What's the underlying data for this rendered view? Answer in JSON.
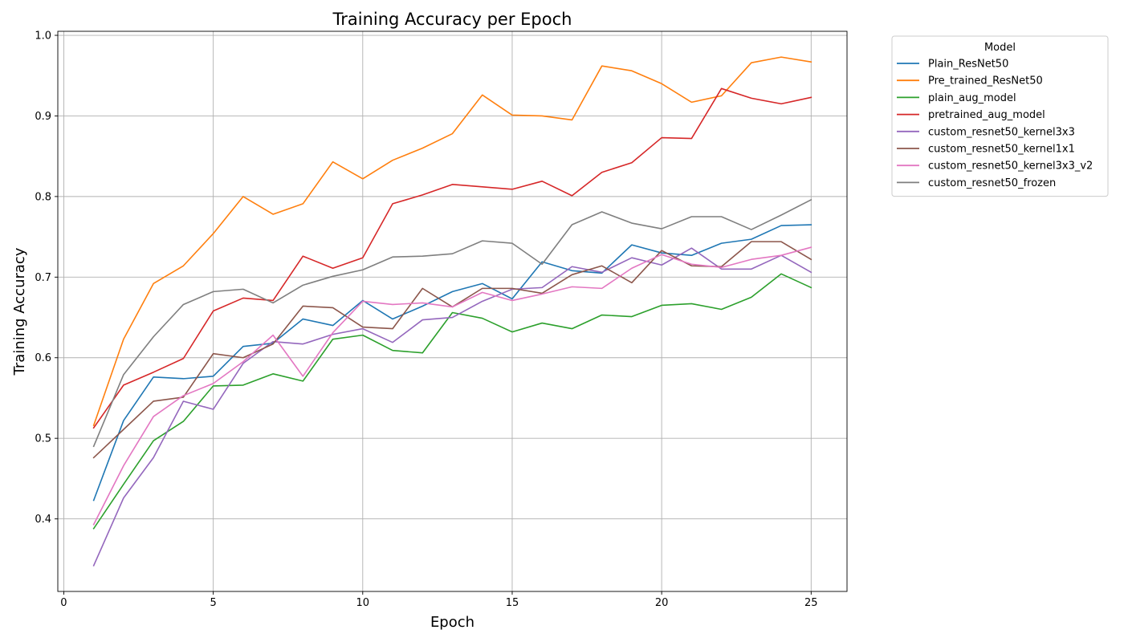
{
  "chart_data": {
    "type": "line",
    "title": "Training Accuracy per Epoch",
    "xlabel": "Epoch",
    "ylabel": "Training Accuracy",
    "xlim": [
      -0.2,
      26.2
    ],
    "ylim": [
      0.31,
      1.005
    ],
    "xticks": [
      0,
      5,
      10,
      15,
      20,
      25
    ],
    "yticks": [
      0.4,
      0.5,
      0.6,
      0.7,
      0.8,
      0.9,
      1.0
    ],
    "xtick_labels": [
      "0",
      "5",
      "10",
      "15",
      "20",
      "25"
    ],
    "ytick_labels": [
      "0.4",
      "0.5",
      "0.6",
      "0.7",
      "0.8",
      "0.9",
      "1.0"
    ],
    "grid": true,
    "legend": {
      "title": "Model",
      "placement": "outside-right-top"
    },
    "x": [
      1,
      2,
      3,
      4,
      5,
      6,
      7,
      8,
      9,
      10,
      11,
      12,
      13,
      14,
      15,
      16,
      17,
      18,
      19,
      20,
      21,
      22,
      23,
      24,
      25
    ],
    "series": [
      {
        "name": "Plain_ResNet50",
        "color": "#1f77b4",
        "values": [
          0.423,
          0.522,
          0.576,
          0.574,
          0.577,
          0.614,
          0.618,
          0.648,
          0.64,
          0.671,
          0.648,
          0.664,
          0.682,
          0.692,
          0.673,
          0.719,
          0.708,
          0.705,
          0.74,
          0.73,
          0.727,
          0.742,
          0.747,
          0.764,
          0.765
        ]
      },
      {
        "name": "Pre_trained_ResNet50",
        "color": "#ff7f0e",
        "values": [
          0.516,
          0.623,
          0.692,
          0.714,
          0.754,
          0.8,
          0.778,
          0.791,
          0.843,
          0.822,
          0.845,
          0.86,
          0.878,
          0.926,
          0.901,
          0.9,
          0.895,
          0.962,
          0.956,
          0.94,
          0.917,
          0.925,
          0.966,
          0.973,
          0.967
        ]
      },
      {
        "name": "plain_aug_model",
        "color": "#2ca02c",
        "values": [
          0.388,
          0.443,
          0.497,
          0.521,
          0.565,
          0.566,
          0.58,
          0.571,
          0.623,
          0.628,
          0.609,
          0.606,
          0.656,
          0.649,
          0.632,
          0.643,
          0.636,
          0.653,
          0.651,
          0.665,
          0.667,
          0.66,
          0.675,
          0.704,
          0.687
        ]
      },
      {
        "name": "pretrained_aug_model",
        "color": "#d62728",
        "values": [
          0.513,
          0.566,
          0.582,
          0.599,
          0.658,
          0.674,
          0.671,
          0.726,
          0.711,
          0.724,
          0.791,
          0.802,
          0.815,
          0.812,
          0.809,
          0.819,
          0.801,
          0.83,
          0.842,
          0.873,
          0.872,
          0.934,
          0.922,
          0.915,
          0.923
        ]
      },
      {
        "name": "custom_resnet50_kernel3x3",
        "color": "#9467bd",
        "values": [
          0.342,
          0.426,
          0.476,
          0.546,
          0.536,
          0.593,
          0.62,
          0.617,
          0.629,
          0.636,
          0.619,
          0.647,
          0.65,
          0.67,
          0.685,
          0.687,
          0.713,
          0.706,
          0.724,
          0.715,
          0.736,
          0.71,
          0.71,
          0.727,
          0.706
        ]
      },
      {
        "name": "custom_resnet50_kernel1x1",
        "color": "#8c564b",
        "values": [
          0.476,
          0.511,
          0.546,
          0.551,
          0.605,
          0.6,
          0.617,
          0.664,
          0.662,
          0.638,
          0.636,
          0.686,
          0.663,
          0.686,
          0.686,
          0.68,
          0.703,
          0.714,
          0.693,
          0.733,
          0.714,
          0.713,
          0.744,
          0.744,
          0.722
        ]
      },
      {
        "name": "custom_resnet50_kernel3x3_v2",
        "color": "#e377c2",
        "values": [
          0.393,
          0.466,
          0.527,
          0.553,
          0.568,
          0.595,
          0.628,
          0.577,
          0.631,
          0.67,
          0.666,
          0.668,
          0.663,
          0.681,
          0.671,
          0.679,
          0.688,
          0.686,
          0.711,
          0.728,
          0.716,
          0.712,
          0.722,
          0.727,
          0.737
        ]
      },
      {
        "name": "custom_resnet50_frozen",
        "color": "#7f7f7f",
        "values": [
          0.49,
          0.579,
          0.626,
          0.666,
          0.682,
          0.685,
          0.668,
          0.69,
          0.701,
          0.709,
          0.725,
          0.726,
          0.729,
          0.745,
          0.742,
          0.716,
          0.765,
          0.781,
          0.767,
          0.76,
          0.775,
          0.775,
          0.759,
          0.777,
          0.796
        ]
      }
    ]
  }
}
